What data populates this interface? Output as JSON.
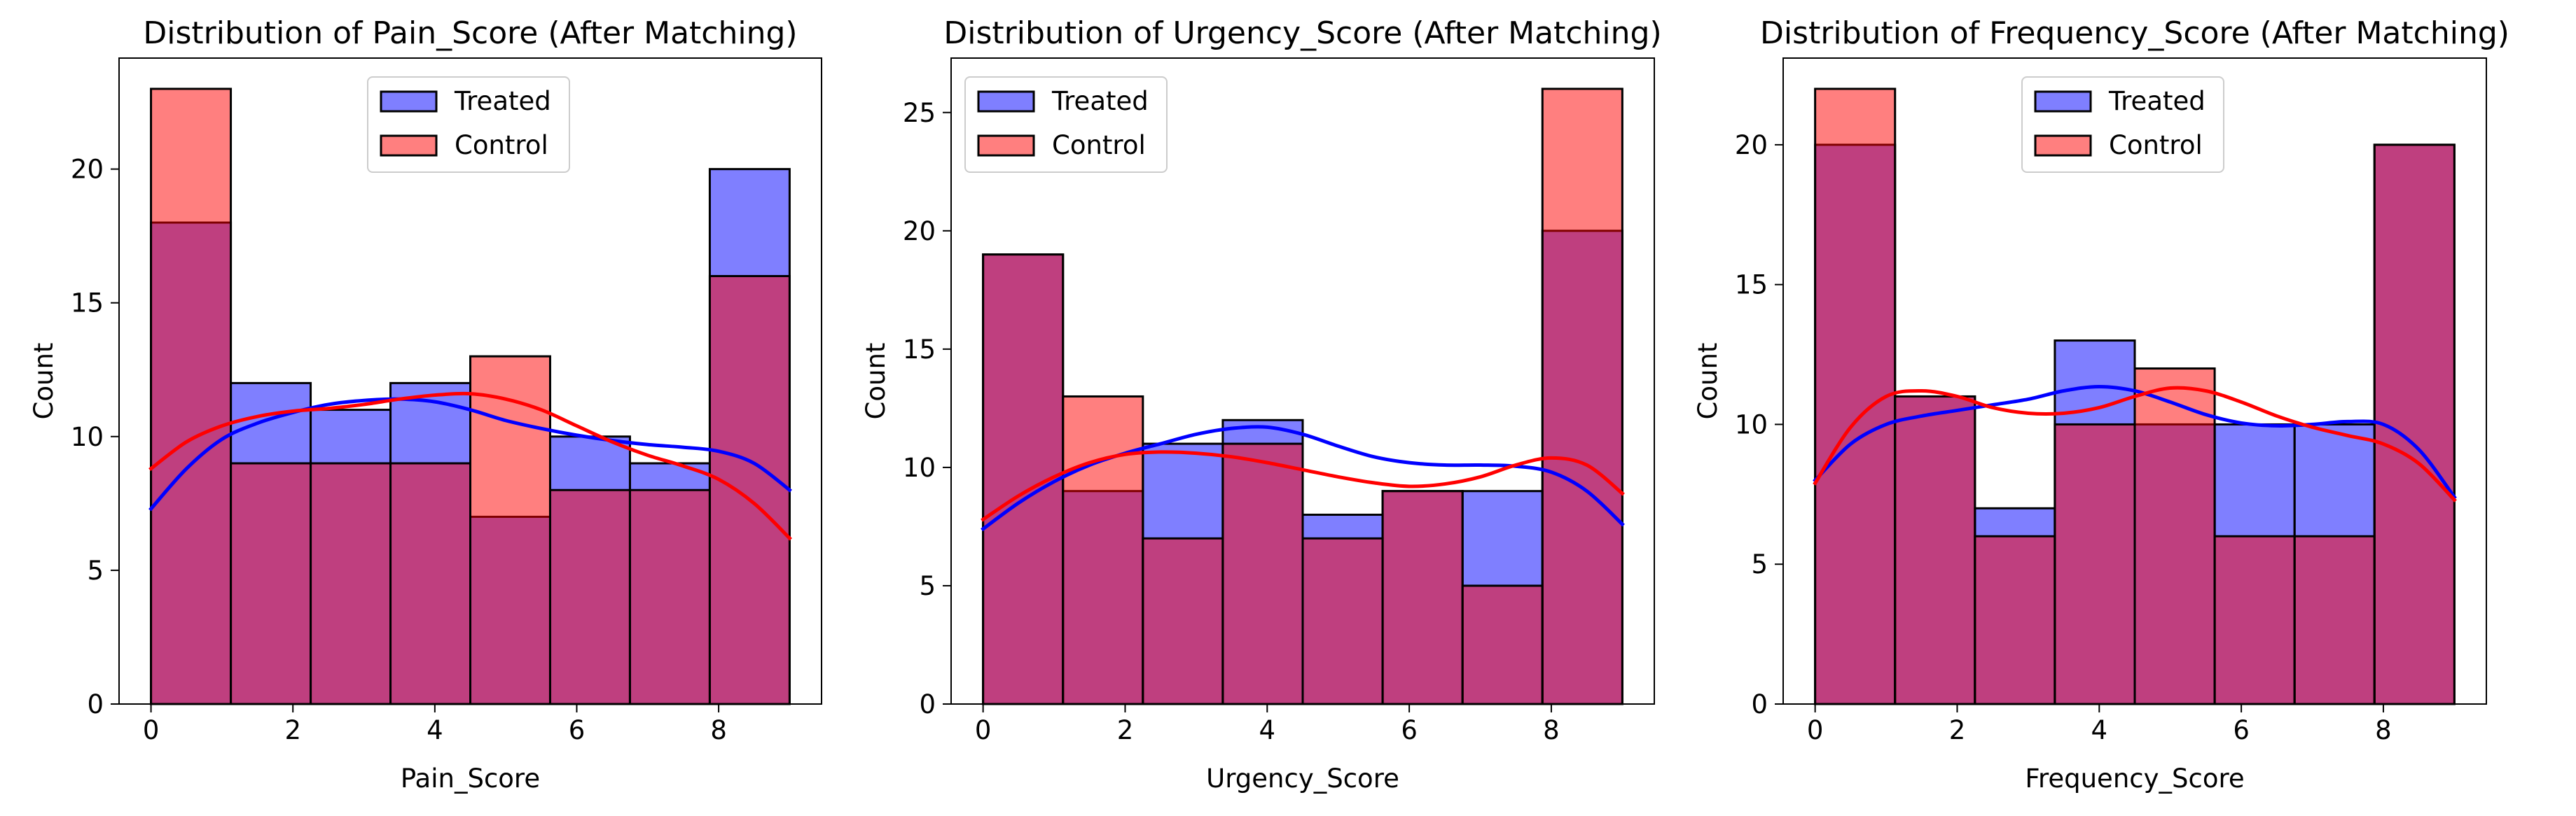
{
  "chart_data": [
    {
      "type": "bar",
      "title": "Distribution of Pain_Score (After Matching)",
      "xlabel": "Pain_Score",
      "ylabel": "Count",
      "xlim": [
        -0.45,
        9.45
      ],
      "ylim": [
        0,
        24.15
      ],
      "xticks": [
        0,
        2,
        4,
        6,
        8
      ],
      "yticks": [
        0,
        5,
        10,
        15,
        20
      ],
      "bin_edges": [
        0,
        1.125,
        2.25,
        3.375,
        4.5,
        5.625,
        6.75,
        7.875,
        9
      ],
      "legend": "upper-center",
      "series": [
        {
          "name": "Treated",
          "color": "#0000ff",
          "values": [
            18,
            12,
            11,
            12,
            7,
            10,
            9,
            20
          ],
          "kde": [
            [
              0,
              7.3
            ],
            [
              0.5,
              8.8
            ],
            [
              1,
              9.9
            ],
            [
              1.5,
              10.5
            ],
            [
              2,
              10.9
            ],
            [
              2.5,
              11.2
            ],
            [
              3,
              11.35
            ],
            [
              3.5,
              11.4
            ],
            [
              4,
              11.3
            ],
            [
              4.5,
              11.0
            ],
            [
              5,
              10.6
            ],
            [
              5.5,
              10.3
            ],
            [
              6,
              10.05
            ],
            [
              6.5,
              9.85
            ],
            [
              7,
              9.7
            ],
            [
              7.5,
              9.6
            ],
            [
              8,
              9.45
            ],
            [
              8.5,
              9.0
            ],
            [
              9,
              8.0
            ]
          ]
        },
        {
          "name": "Control",
          "color": "#ff0000",
          "values": [
            23,
            9,
            9,
            9,
            13,
            8,
            8,
            16
          ],
          "kde": [
            [
              0,
              8.8
            ],
            [
              0.5,
              9.8
            ],
            [
              1,
              10.4
            ],
            [
              1.5,
              10.75
            ],
            [
              2,
              10.95
            ],
            [
              2.5,
              11.05
            ],
            [
              3,
              11.2
            ],
            [
              3.5,
              11.4
            ],
            [
              4,
              11.55
            ],
            [
              4.5,
              11.6
            ],
            [
              5,
              11.4
            ],
            [
              5.5,
              11.0
            ],
            [
              6,
              10.4
            ],
            [
              6.5,
              9.8
            ],
            [
              7,
              9.3
            ],
            [
              7.5,
              8.9
            ],
            [
              8,
              8.4
            ],
            [
              8.5,
              7.5
            ],
            [
              9,
              6.2
            ]
          ]
        }
      ]
    },
    {
      "type": "bar",
      "title": "Distribution of Urgency_Score (After Matching)",
      "xlabel": "Urgency_Score",
      "ylabel": "Count",
      "xlim": [
        -0.45,
        9.45
      ],
      "ylim": [
        0,
        27.3
      ],
      "xticks": [
        0,
        2,
        4,
        6,
        8
      ],
      "yticks": [
        0,
        5,
        10,
        15,
        20,
        25
      ],
      "bin_edges": [
        0,
        1.125,
        2.25,
        3.375,
        4.5,
        5.625,
        6.75,
        7.875,
        9
      ],
      "legend": "upper-left",
      "series": [
        {
          "name": "Treated",
          "color": "#0000ff",
          "values": [
            19,
            9,
            11,
            12,
            8,
            9,
            9,
            20
          ],
          "kde": [
            [
              0,
              7.4
            ],
            [
              0.5,
              8.5
            ],
            [
              1,
              9.4
            ],
            [
              1.5,
              10.1
            ],
            [
              2,
              10.6
            ],
            [
              2.5,
              11.0
            ],
            [
              3,
              11.4
            ],
            [
              3.5,
              11.65
            ],
            [
              4,
              11.7
            ],
            [
              4.5,
              11.4
            ],
            [
              5,
              10.9
            ],
            [
              5.5,
              10.45
            ],
            [
              6,
              10.2
            ],
            [
              6.5,
              10.1
            ],
            [
              7,
              10.1
            ],
            [
              7.5,
              10.05
            ],
            [
              8,
              9.8
            ],
            [
              8.5,
              9.0
            ],
            [
              9,
              7.6
            ]
          ]
        },
        {
          "name": "Control",
          "color": "#ff0000",
          "values": [
            19,
            13,
            7,
            11,
            7,
            9,
            5,
            26
          ],
          "kde": [
            [
              0,
              7.8
            ],
            [
              0.5,
              8.8
            ],
            [
              1,
              9.6
            ],
            [
              1.5,
              10.2
            ],
            [
              2,
              10.55
            ],
            [
              2.5,
              10.65
            ],
            [
              3,
              10.6
            ],
            [
              3.5,
              10.45
            ],
            [
              4,
              10.2
            ],
            [
              4.5,
              9.9
            ],
            [
              5,
              9.6
            ],
            [
              5.5,
              9.35
            ],
            [
              6,
              9.2
            ],
            [
              6.5,
              9.3
            ],
            [
              7,
              9.6
            ],
            [
              7.5,
              10.1
            ],
            [
              8,
              10.4
            ],
            [
              8.5,
              10.1
            ],
            [
              9,
              8.9
            ]
          ]
        }
      ]
    },
    {
      "type": "bar",
      "title": "Distribution of Frequency_Score (After Matching)",
      "xlabel": "Frequency_Score",
      "ylabel": "Count",
      "xlim": [
        -0.45,
        9.45
      ],
      "ylim": [
        0,
        23.1
      ],
      "xticks": [
        0,
        2,
        4,
        6,
        8
      ],
      "yticks": [
        0,
        5,
        10,
        15,
        20
      ],
      "bin_edges": [
        0,
        1.125,
        2.25,
        3.375,
        4.5,
        5.625,
        6.75,
        7.875,
        9
      ],
      "legend": "upper-center",
      "series": [
        {
          "name": "Treated",
          "color": "#0000ff",
          "values": [
            20,
            11,
            7,
            13,
            10,
            10,
            10,
            20
          ],
          "kde": [
            [
              0,
              8.0
            ],
            [
              0.5,
              9.3
            ],
            [
              1,
              10.0
            ],
            [
              1.5,
              10.3
            ],
            [
              2,
              10.5
            ],
            [
              2.5,
              10.7
            ],
            [
              3,
              10.9
            ],
            [
              3.5,
              11.2
            ],
            [
              4,
              11.35
            ],
            [
              4.5,
              11.2
            ],
            [
              5,
              10.8
            ],
            [
              5.5,
              10.35
            ],
            [
              6,
              10.05
            ],
            [
              6.5,
              9.95
            ],
            [
              7,
              10.0
            ],
            [
              7.5,
              10.1
            ],
            [
              8,
              10.0
            ],
            [
              8.5,
              9.1
            ],
            [
              9,
              7.4
            ]
          ]
        },
        {
          "name": "Control",
          "color": "#ff0000",
          "values": [
            22,
            11,
            6,
            10,
            12,
            6,
            6,
            20
          ],
          "kde": [
            [
              0,
              7.9
            ],
            [
              0.5,
              9.9
            ],
            [
              1,
              11.0
            ],
            [
              1.5,
              11.2
            ],
            [
              2,
              11.0
            ],
            [
              2.5,
              10.6
            ],
            [
              3,
              10.4
            ],
            [
              3.5,
              10.4
            ],
            [
              4,
              10.6
            ],
            [
              4.5,
              11.0
            ],
            [
              5,
              11.3
            ],
            [
              5.5,
              11.2
            ],
            [
              6,
              10.8
            ],
            [
              6.5,
              10.3
            ],
            [
              7,
              9.9
            ],
            [
              7.5,
              9.6
            ],
            [
              8,
              9.3
            ],
            [
              8.5,
              8.6
            ],
            [
              9,
              7.3
            ]
          ]
        }
      ]
    }
  ]
}
